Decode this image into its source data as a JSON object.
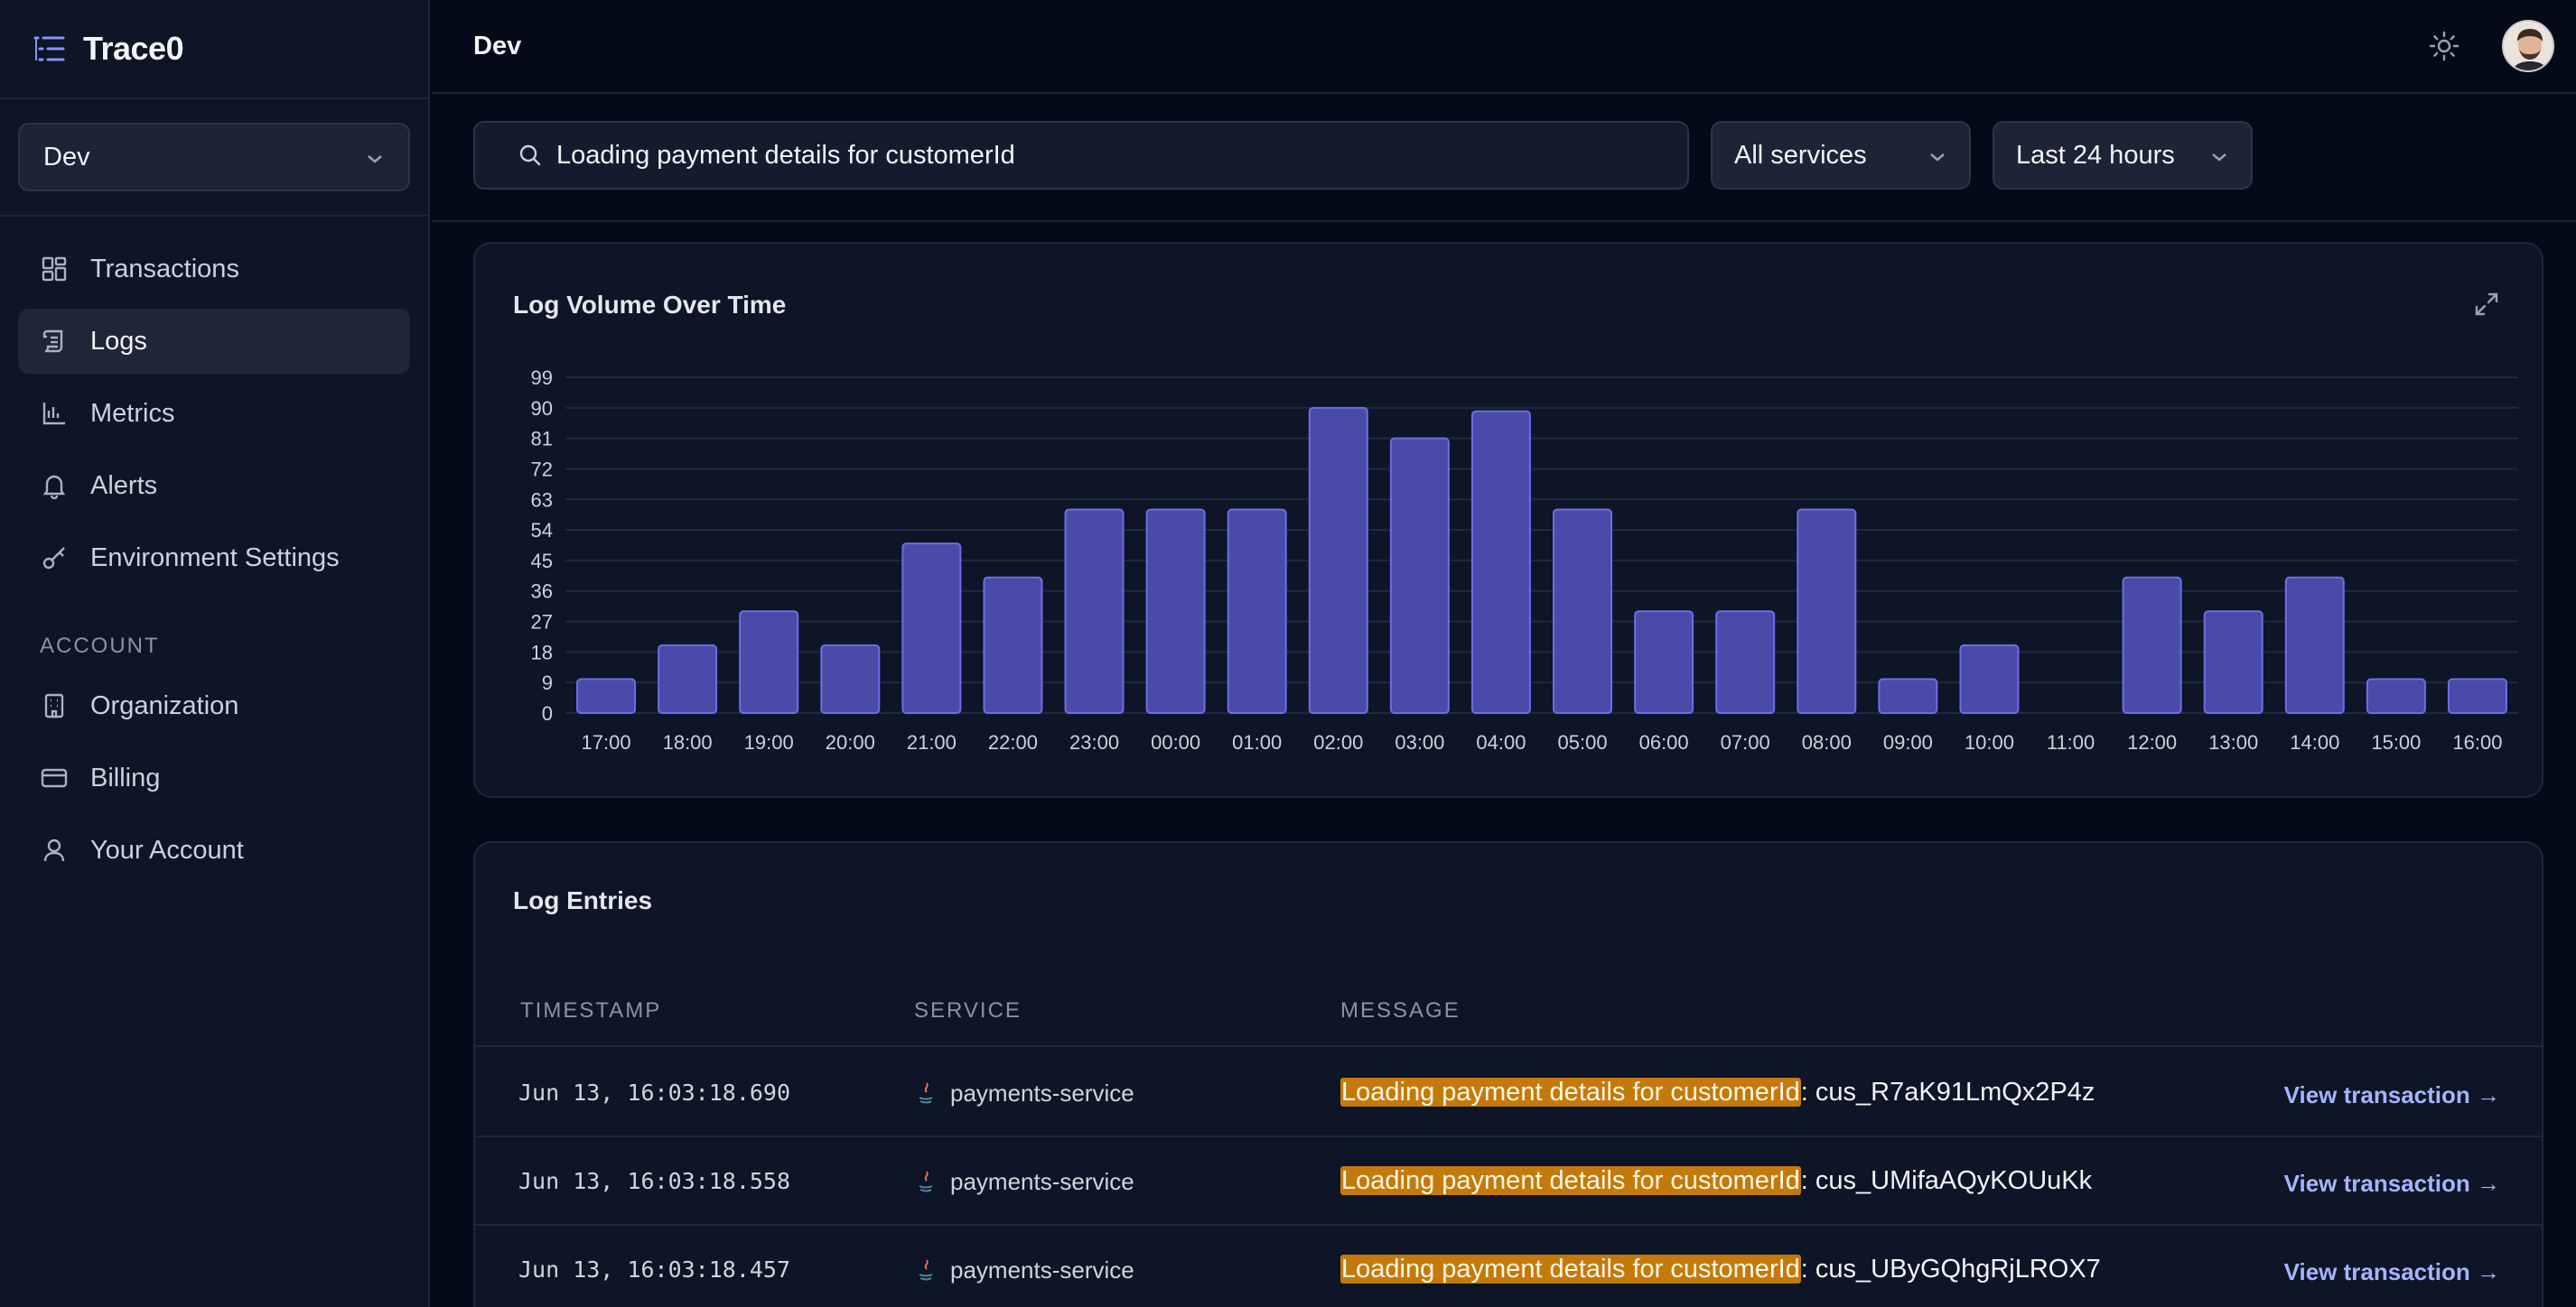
{
  "app": {
    "name": "Trace0"
  },
  "environment": {
    "selected": "Dev"
  },
  "sidebar": {
    "items": [
      {
        "label": "Transactions",
        "icon": "grid-icon"
      },
      {
        "label": "Logs",
        "icon": "scroll-icon",
        "active": true
      },
      {
        "label": "Metrics",
        "icon": "bar-chart-icon"
      },
      {
        "label": "Alerts",
        "icon": "bell-icon"
      },
      {
        "label": "Environment Settings",
        "icon": "key-icon"
      }
    ],
    "account_label": "ACCOUNT",
    "account_items": [
      {
        "label": "Organization",
        "icon": "building-icon"
      },
      {
        "label": "Billing",
        "icon": "credit-card-icon"
      },
      {
        "label": "Your Account",
        "icon": "user-icon"
      }
    ]
  },
  "header": {
    "breadcrumb": "Dev"
  },
  "filters": {
    "search_value": "Loading payment details for customerId",
    "service": "All services",
    "time_range": "Last 24 hours"
  },
  "chart_panel": {
    "title": "Log Volume Over Time"
  },
  "chart_data": {
    "type": "bar",
    "title": "Log Volume Over Time",
    "categories": [
      "17:00",
      "18:00",
      "19:00",
      "20:00",
      "21:00",
      "22:00",
      "23:00",
      "00:00",
      "01:00",
      "02:00",
      "03:00",
      "04:00",
      "05:00",
      "06:00",
      "07:00",
      "08:00",
      "09:00",
      "10:00",
      "11:00",
      "12:00",
      "13:00",
      "14:00",
      "15:00",
      "16:00"
    ],
    "values": [
      10,
      20,
      30,
      20,
      50,
      40,
      60,
      60,
      60,
      90,
      81,
      89,
      60,
      30,
      30,
      60,
      10,
      20,
      0,
      40,
      30,
      40,
      10,
      10
    ],
    "yticks": [
      0,
      9,
      18,
      27,
      36,
      45,
      54,
      63,
      72,
      81,
      90,
      99
    ],
    "ylim": [
      0,
      99
    ],
    "grid": true,
    "bar_color": "#4a4aa8",
    "bar_border": "#6b6ee8"
  },
  "logs_panel": {
    "title": "Log Entries",
    "columns": {
      "timestamp": "TIMESTAMP",
      "service": "SERVICE",
      "message": "MESSAGE"
    },
    "rows": [
      {
        "timestamp": "Jun 13, 16:03:18.690",
        "service": "payments-service",
        "highlight": "Loading payment details for customerId",
        "rest": ": cus_R7aK91LmQx2P4z",
        "action": "View transaction →"
      },
      {
        "timestamp": "Jun 13, 16:03:18.558",
        "service": "payments-service",
        "highlight": "Loading payment details for customerId",
        "rest": ": cus_UMifaAQyKOUuKk",
        "action": "View transaction →"
      },
      {
        "timestamp": "Jun 13, 16:03:18.457",
        "service": "payments-service",
        "highlight": "Loading payment details for customerId",
        "rest": ": cus_UByGQhgRjLROX7",
        "action": "View transaction →"
      }
    ]
  },
  "colors": {
    "accent": "#a5b4fc",
    "highlight": "#c47a0b",
    "background": "#050a19",
    "panel": "#0d1526"
  }
}
